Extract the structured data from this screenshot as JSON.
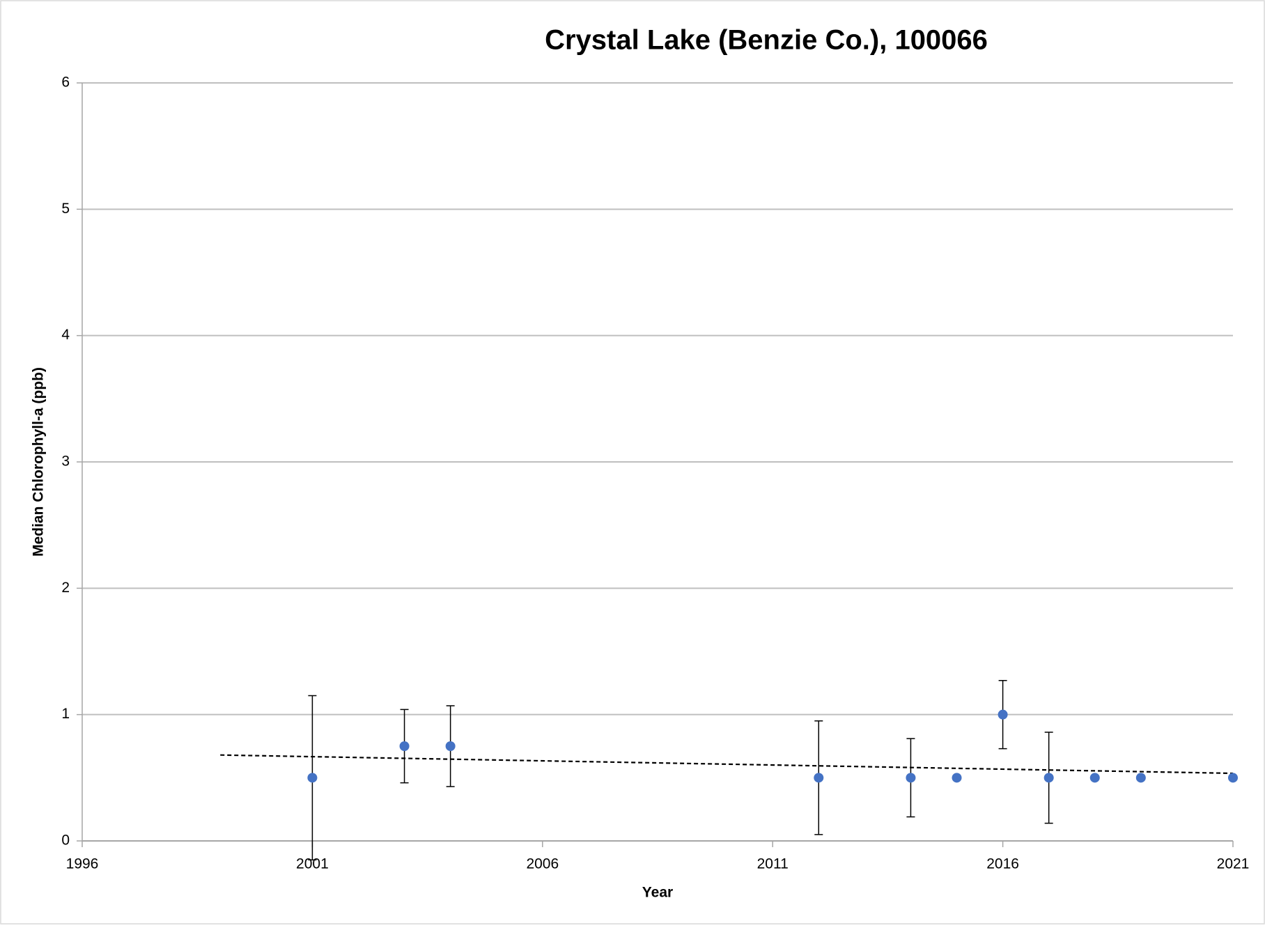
{
  "chart_data": {
    "type": "scatter",
    "title": "Crystal Lake (Benzie Co.), 100066",
    "x_label": "Year",
    "y_label": "Median Chlorophyll-a (ppb)",
    "series": [
      {
        "name": "Median Chlorophyll-a",
        "color": "#4472c4",
        "x": [
          2001,
          2003,
          2004,
          2012,
          2014,
          2015,
          2016,
          2017,
          2018,
          2019,
          2021
        ],
        "values": [
          0.5,
          0.75,
          0.75,
          0.5,
          0.5,
          0.5,
          1.0,
          0.5,
          0.5,
          0.5,
          0.5
        ],
        "errors": [
          0.65,
          0.29,
          0.32,
          0.45,
          0.31,
          null,
          0.27,
          0.36,
          null,
          null,
          null
        ]
      }
    ],
    "trendline": {
      "x": [
        1999,
        2021
      ],
      "y": [
        0.68,
        0.535
      ],
      "color": "#000000"
    },
    "xlim": [
      1996,
      2021
    ],
    "xticks": [
      1996,
      2001,
      2006,
      2011,
      2016,
      2021
    ],
    "ylim": [
      0,
      6
    ],
    "yticks": [
      0,
      1,
      2,
      3,
      4,
      5,
      6
    ],
    "grid": true
  }
}
